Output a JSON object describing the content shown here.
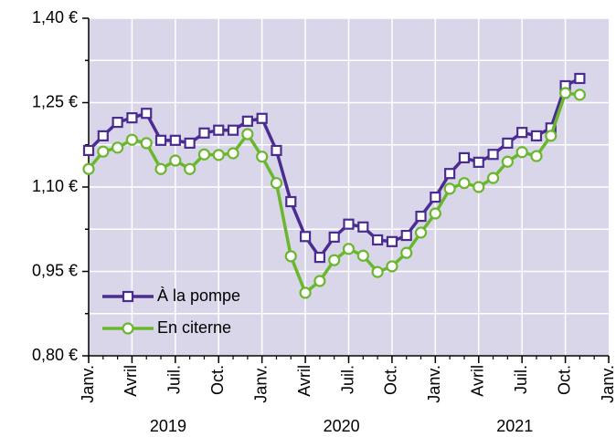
{
  "chart_data": {
    "type": "line",
    "x": [
      "2019-01",
      "2019-02",
      "2019-03",
      "2019-04",
      "2019-05",
      "2019-06",
      "2019-07",
      "2019-08",
      "2019-09",
      "2019-10",
      "2019-11",
      "2019-12",
      "2020-01",
      "2020-02",
      "2020-03",
      "2020-04",
      "2020-05",
      "2020-06",
      "2020-07",
      "2020-08",
      "2020-09",
      "2020-10",
      "2020-11",
      "2020-12",
      "2021-01",
      "2021-02",
      "2021-03",
      "2021-04",
      "2021-05",
      "2021-06",
      "2021-07",
      "2021-08",
      "2021-09",
      "2021-10",
      "2021-11"
    ],
    "series": [
      {
        "name": "À la pompe",
        "color": "#4b2c91",
        "marker": "square",
        "values": [
          1.165,
          1.191,
          1.215,
          1.223,
          1.231,
          1.183,
          1.183,
          1.178,
          1.196,
          1.201,
          1.201,
          1.217,
          1.222,
          1.165,
          1.074,
          1.012,
          0.975,
          1.011,
          1.034,
          1.029,
          1.006,
          1.003,
          1.014,
          1.048,
          1.082,
          1.124,
          1.152,
          1.144,
          1.158,
          1.178,
          1.197,
          1.191,
          1.205,
          1.28,
          1.293
        ]
      },
      {
        "name": "En citerne",
        "color": "#6ab72e",
        "marker": "circle",
        "values": [
          1.132,
          1.163,
          1.17,
          1.184,
          1.178,
          1.132,
          1.147,
          1.132,
          1.158,
          1.157,
          1.16,
          1.194,
          1.154,
          1.107,
          0.977,
          0.912,
          0.933,
          0.97,
          0.99,
          0.978,
          0.949,
          0.959,
          0.983,
          1.019,
          1.053,
          1.097,
          1.107,
          1.1,
          1.116,
          1.145,
          1.162,
          1.155,
          1.191,
          1.267,
          1.264
        ]
      }
    ],
    "xlim": [
      "2019-01",
      "2022-01"
    ],
    "xticks": [
      {
        "value": "2019-01",
        "label": "Janv."
      },
      {
        "value": "2019-04",
        "label": "Avril"
      },
      {
        "value": "2019-07",
        "label": "Juil."
      },
      {
        "value": "2019-10",
        "label": "Oct."
      },
      {
        "value": "2020-01",
        "label": "Janv."
      },
      {
        "value": "2020-04",
        "label": "Avril"
      },
      {
        "value": "2020-07",
        "label": "Juil."
      },
      {
        "value": "2020-10",
        "label": "Oct."
      },
      {
        "value": "2021-01",
        "label": "Janv."
      },
      {
        "value": "2021-04",
        "label": "Avril"
      },
      {
        "value": "2021-07",
        "label": "Juil."
      },
      {
        "value": "2021-10",
        "label": "Oct."
      },
      {
        "value": "2022-01",
        "label": "Janv."
      }
    ],
    "years": [
      "2019",
      "2020",
      "2021"
    ],
    "ylim": [
      0.8,
      1.4
    ],
    "yticks": [
      {
        "value": 0.8,
        "label": "0,80 €"
      },
      {
        "value": 0.95,
        "label": "0,95 €"
      },
      {
        "value": 1.1,
        "label": "1,10 €"
      },
      {
        "value": 1.25,
        "label": "1,25 €"
      },
      {
        "value": 1.4,
        "label": "1,40 €"
      }
    ],
    "grid": true,
    "background": "#d9d6ea",
    "legend": "lower left"
  }
}
